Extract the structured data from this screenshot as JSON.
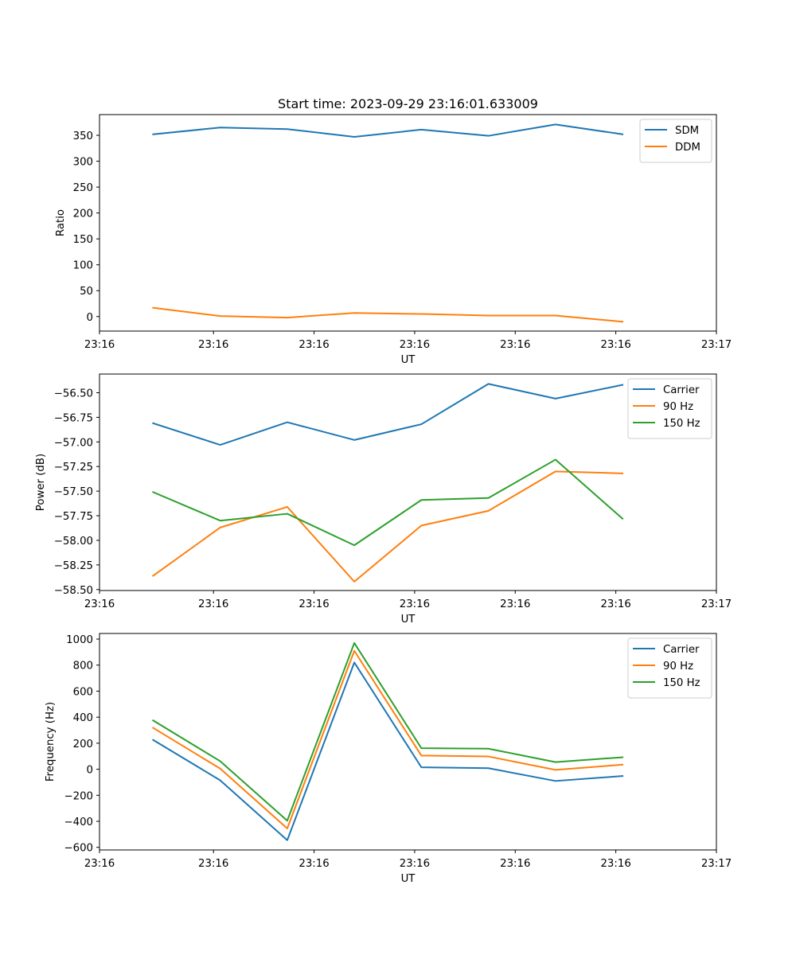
{
  "title": "Start time: 2023-09-29 23:16:01.633009",
  "colors": {
    "blue": "#1f77b4",
    "orange": "#ff7f0e",
    "green": "#2ca02c",
    "axis": "#000000",
    "legend_border": "#cccccc"
  },
  "chart_data": [
    {
      "type": "line",
      "title": "Start time: 2023-09-29 23:16:01.633009",
      "xlabel": "UT",
      "ylabel": "Ratio",
      "x": [
        1,
        2,
        3,
        4,
        5,
        6,
        7,
        8
      ],
      "xlim": [
        0.2,
        9.4
      ],
      "xticks": [
        0.2,
        1.9,
        3.4,
        4.9,
        6.4,
        7.9,
        9.4
      ],
      "xticklabels": [
        "23:16",
        "23:16",
        "23:16",
        "23:16",
        "23:16",
        "23:16",
        "23:17"
      ],
      "ylim": [
        -28,
        390
      ],
      "yticks": [
        0,
        50,
        100,
        150,
        200,
        250,
        300,
        350
      ],
      "yticklabels": [
        "0",
        "50",
        "100",
        "150",
        "200",
        "250",
        "300",
        "350"
      ],
      "legend": "top-right",
      "series": [
        {
          "name": "SDM",
          "color": "#1f77b4",
          "values": [
            352,
            365,
            362,
            347,
            361,
            349,
            371,
            352
          ]
        },
        {
          "name": "DDM",
          "color": "#ff7f0e",
          "values": [
            17,
            1,
            -2,
            7,
            5,
            2,
            2,
            -10
          ]
        }
      ]
    },
    {
      "type": "line",
      "xlabel": "UT",
      "ylabel": "Power (dB)",
      "x": [
        1,
        2,
        3,
        4,
        5,
        6,
        7,
        8
      ],
      "xlim": [
        0.2,
        9.4
      ],
      "xticks": [
        0.2,
        1.9,
        3.4,
        4.9,
        6.4,
        7.9,
        9.4
      ],
      "xticklabels": [
        "23:16",
        "23:16",
        "23:16",
        "23:16",
        "23:16",
        "23:16",
        "23:17"
      ],
      "ylim": [
        -58.51,
        -56.31
      ],
      "yticks": [
        -58.5,
        -58.25,
        -58.0,
        -57.75,
        -57.5,
        -57.25,
        -57.0,
        -56.75,
        -56.5
      ],
      "yticklabels": [
        "−58.50",
        "−58.25",
        "−58.00",
        "−57.75",
        "−57.50",
        "−57.25",
        "−57.00",
        "−56.75",
        "−56.50"
      ],
      "legend": "top-right",
      "series": [
        {
          "name": "Carrier",
          "color": "#1f77b4",
          "values": [
            -56.81,
            -57.03,
            -56.8,
            -56.98,
            -56.82,
            -56.41,
            -56.56,
            -56.42
          ]
        },
        {
          "name": "90 Hz",
          "color": "#ff7f0e",
          "values": [
            -58.36,
            -57.87,
            -57.66,
            -58.42,
            -57.85,
            -57.7,
            -57.3,
            -57.32
          ]
        },
        {
          "name": "150 Hz",
          "color": "#2ca02c",
          "values": [
            -57.51,
            -57.8,
            -57.73,
            -58.05,
            -57.59,
            -57.57,
            -57.18,
            -57.78
          ]
        }
      ]
    },
    {
      "type": "line",
      "xlabel": "UT",
      "ylabel": "Frequency (Hz)",
      "x": [
        1,
        2,
        3,
        4,
        5,
        6,
        7,
        8
      ],
      "xlim": [
        0.2,
        9.4
      ],
      "xticks": [
        0.2,
        1.9,
        3.4,
        4.9,
        6.4,
        7.9,
        9.4
      ],
      "xticklabels": [
        "23:16",
        "23:16",
        "23:16",
        "23:16",
        "23:16",
        "23:16",
        "23:17"
      ],
      "ylim": [
        -620,
        1043
      ],
      "yticks": [
        -600,
        -400,
        -200,
        0,
        200,
        400,
        600,
        800,
        1000
      ],
      "yticklabels": [
        "−600",
        "−400",
        "−200",
        "0",
        "200",
        "400",
        "600",
        "800",
        "1000"
      ],
      "legend": "top-right",
      "series": [
        {
          "name": "Carrier",
          "color": "#1f77b4",
          "values": [
            225,
            -85,
            -545,
            820,
            15,
            8,
            -90,
            -52
          ]
        },
        {
          "name": "90 Hz",
          "color": "#ff7f0e",
          "values": [
            318,
            5,
            -455,
            910,
            105,
            98,
            -5,
            35
          ]
        },
        {
          "name": "150 Hz",
          "color": "#2ca02c",
          "values": [
            375,
            62,
            -395,
            970,
            162,
            158,
            55,
            92
          ]
        }
      ]
    }
  ]
}
